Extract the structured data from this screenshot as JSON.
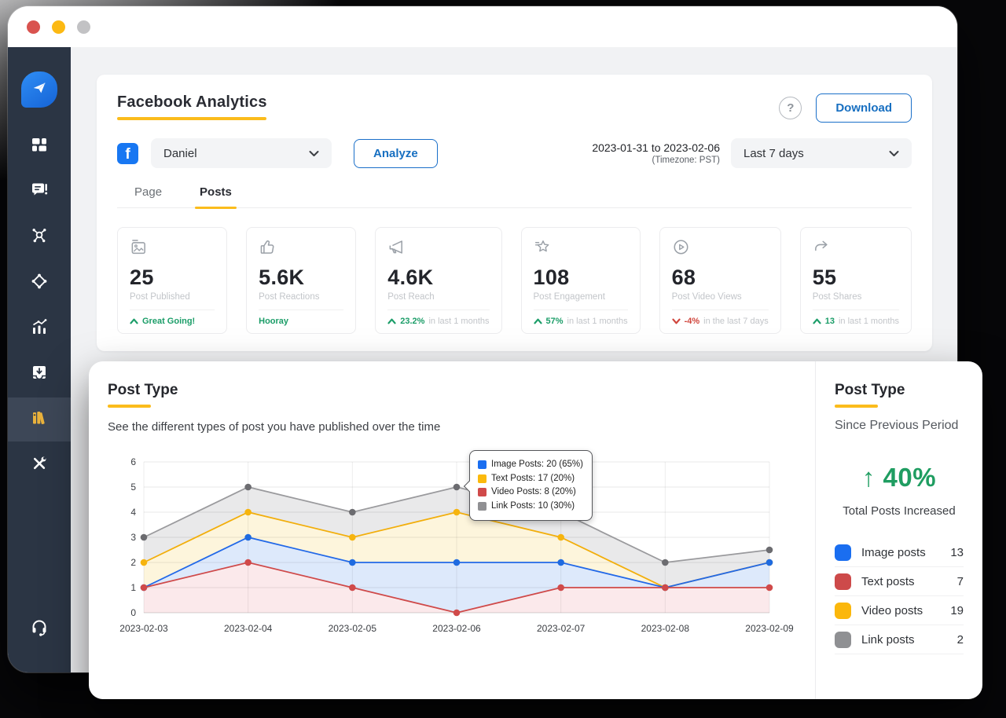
{
  "window": {
    "traffic_lights": [
      "red",
      "yellow",
      "gray"
    ]
  },
  "sidebar": {
    "items": [
      {
        "icon": "paper-plane-logo",
        "active": false,
        "logo": true
      },
      {
        "icon": "dashboard",
        "active": false
      },
      {
        "icon": "comments-alert",
        "active": false
      },
      {
        "icon": "share-network",
        "active": false
      },
      {
        "icon": "diamond-nodes",
        "active": false
      },
      {
        "icon": "analytics-chart",
        "active": false
      },
      {
        "icon": "inbox-download",
        "active": false
      },
      {
        "icon": "library-books",
        "active": true
      },
      {
        "icon": "tools",
        "active": false
      },
      {
        "icon": "headset",
        "active": false,
        "bottom": true
      }
    ]
  },
  "header": {
    "title": "Facebook Analytics",
    "download_label": "Download",
    "help_label": "?"
  },
  "controls": {
    "account": "Daniel",
    "analyze_label": "Analyze",
    "date_range": "2023-01-31 to 2023-02-06",
    "timezone": "(Timezone: PST)",
    "period": "Last 7 days"
  },
  "tabs": [
    {
      "label": "Page",
      "active": false
    },
    {
      "label": "Posts",
      "active": true
    }
  ],
  "stats": [
    {
      "icon": "photo",
      "value": "25",
      "label": "Post Published",
      "arrow": "up",
      "highlight": "Great Going!",
      "rest": "",
      "color": "green"
    },
    {
      "icon": "thumbs-up",
      "value": "5.6K",
      "label": "Post Reactions",
      "arrow": "none",
      "highlight": "Hooray",
      "rest": "",
      "color": "green"
    },
    {
      "icon": "megaphone",
      "value": "4.6K",
      "label": "Post Reach",
      "arrow": "up",
      "highlight": "23.2%",
      "rest": "in last 1 months",
      "color": "green"
    },
    {
      "icon": "star-spark",
      "value": "108",
      "label": "Post Engagement",
      "arrow": "up",
      "highlight": "57%",
      "rest": "in last 1 months",
      "color": "green"
    },
    {
      "icon": "play-circle",
      "value": "68",
      "label": "Post Video Views",
      "arrow": "down",
      "highlight": "-4%",
      "rest": "in the last 7 days",
      "color": "red"
    },
    {
      "icon": "share-arrow",
      "value": "55",
      "label": "Post Shares",
      "arrow": "up",
      "highlight": "13",
      "rest": "in last 1 months",
      "color": "green"
    }
  ],
  "post_type": {
    "title": "Post Type",
    "subtitle": "See the different types of post you have published over the time",
    "tooltip": {
      "rows": [
        {
          "color": "#1a6ef0",
          "text": "Image Posts: 20 (65%)"
        },
        {
          "color": "#fbb90c",
          "text": "Text Posts: 17 (20%)"
        },
        {
          "color": "#d04a4a",
          "text": "Video Posts: 8 (20%)"
        },
        {
          "color": "#909093",
          "text": "Link Posts: 10 (30%)"
        }
      ]
    },
    "summary": {
      "title": "Post Type",
      "subtitle": "Since Previous Period",
      "change_arrow": "↑",
      "change": "40%",
      "change_label": "Total Posts Increased",
      "legend": [
        {
          "color": "#1a6ef0",
          "label": "Image posts",
          "value": "13"
        },
        {
          "color": "#cd4a4a",
          "label": "Text posts",
          "value": "7"
        },
        {
          "color": "#fbb70c",
          "label": "Video posts",
          "value": "19"
        },
        {
          "color": "#8f9093",
          "label": "Link posts",
          "value": "2"
        }
      ]
    }
  },
  "chart_data": {
    "type": "area",
    "title": "Post Type",
    "x": [
      "2023-02-03",
      "2023-02-04",
      "2023-02-05",
      "2023-02-06",
      "2023-02-07",
      "2023-02-08",
      "2023-02-09"
    ],
    "series": [
      {
        "name": "Link posts",
        "color": "#9a9a9d",
        "dot": "#6c6c70",
        "fill": "#e9e9ea",
        "values": [
          3,
          5,
          4,
          5,
          4,
          2,
          2.5
        ]
      },
      {
        "name": "Video posts",
        "color": "#f2ae0b",
        "dot": "#f6b40e",
        "fill": "#fdf5dc",
        "values": [
          2,
          4,
          3,
          4,
          3,
          1,
          2
        ]
      },
      {
        "name": "Image posts",
        "color": "#2168e8",
        "dot": "#1f6be0",
        "fill": "#dde9fb",
        "values": [
          1,
          3,
          2,
          2,
          2,
          1,
          2
        ]
      },
      {
        "name": "Text posts",
        "color": "#cf4949",
        "dot": "#d04a4a",
        "fill": "#fbe9eb",
        "values": [
          1,
          2,
          1,
          0,
          1,
          1,
          1
        ]
      }
    ],
    "ylim": [
      0,
      6
    ],
    "yticks": [
      0,
      1,
      2,
      3,
      4,
      5,
      6
    ],
    "grid": true,
    "legend_position": "right-panel"
  }
}
